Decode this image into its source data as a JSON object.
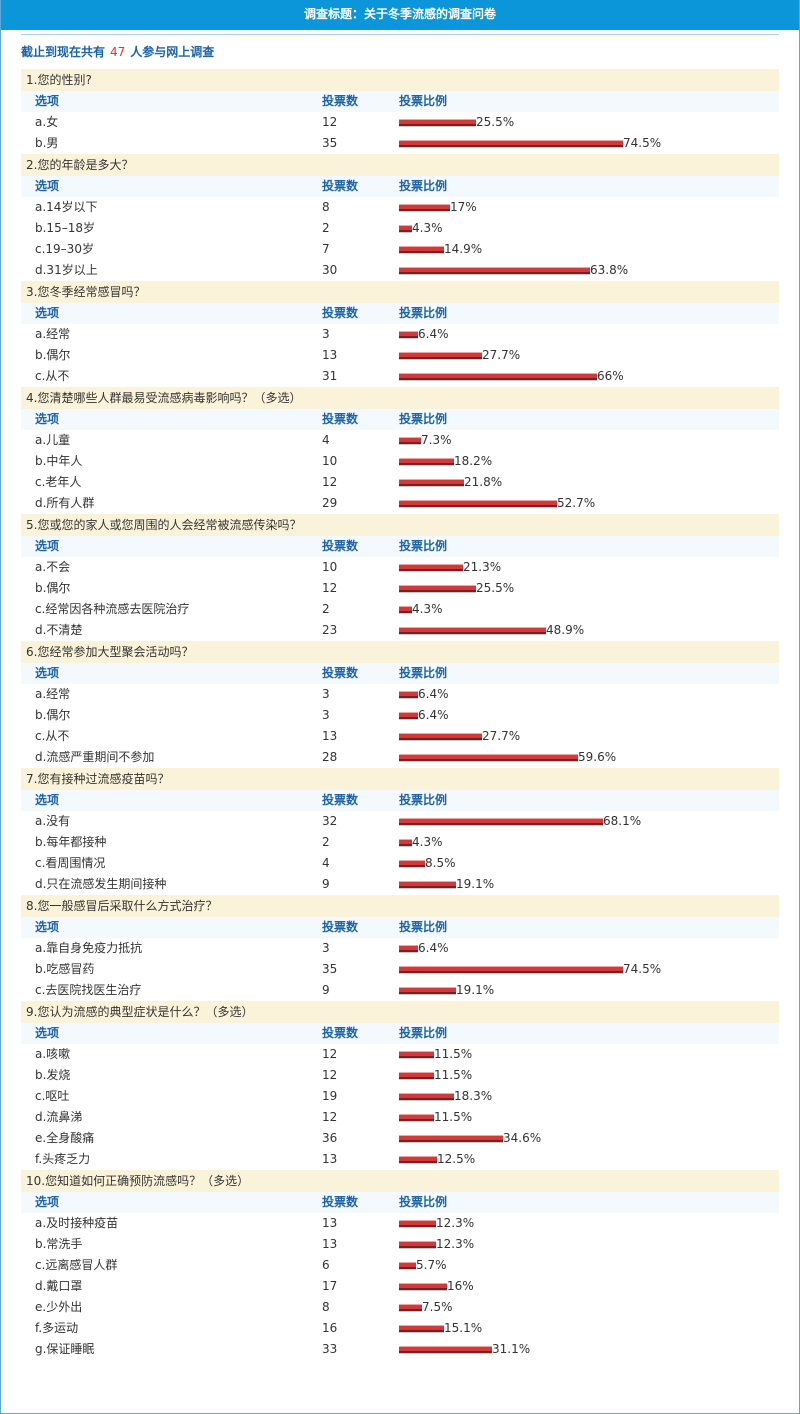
{
  "header": {
    "title": "调查标题：关于冬季流感的调查问卷"
  },
  "summary": {
    "prefix": "截止到现在共有",
    "count": "47",
    "suffix": "人参与网上调查"
  },
  "columns": {
    "option": "选项",
    "votes": "投票数",
    "ratio": "投票比例"
  },
  "colors": {
    "title_bar": "#0a96d8",
    "bar": "#d2393b",
    "question_bg": "#fbf3d9",
    "header_text": "#1d63a7"
  },
  "questions": [
    {
      "title": "1.您的性别?",
      "options": [
        {
          "label": "a.女",
          "votes": "12",
          "pct": 25.5,
          "pct_text": "25.5%"
        },
        {
          "label": "b.男",
          "votes": "35",
          "pct": 74.5,
          "pct_text": "74.5%"
        }
      ]
    },
    {
      "title": "2.您的年龄是多大？",
      "options": [
        {
          "label": "a.14岁以下",
          "votes": "8",
          "pct": 17,
          "pct_text": "17%"
        },
        {
          "label": "b.15–18岁",
          "votes": "2",
          "pct": 4.3,
          "pct_text": "4.3%"
        },
        {
          "label": "c.19–30岁",
          "votes": "7",
          "pct": 14.9,
          "pct_text": "14.9%"
        },
        {
          "label": "d.31岁以上",
          "votes": "30",
          "pct": 63.8,
          "pct_text": "63.8%"
        }
      ]
    },
    {
      "title": "3.您冬季经常感冒吗？",
      "options": [
        {
          "label": "a.经常",
          "votes": "3",
          "pct": 6.4,
          "pct_text": "6.4%"
        },
        {
          "label": "b.偶尔",
          "votes": "13",
          "pct": 27.7,
          "pct_text": "27.7%"
        },
        {
          "label": "c.从不",
          "votes": "31",
          "pct": 66,
          "pct_text": "66%"
        }
      ]
    },
    {
      "title": "4.您清楚哪些人群最易受流感病毒影响吗？（多选）",
      "options": [
        {
          "label": "a.儿童",
          "votes": "4",
          "pct": 7.3,
          "pct_text": "7.3%"
        },
        {
          "label": "b.中年人",
          "votes": "10",
          "pct": 18.2,
          "pct_text": "18.2%"
        },
        {
          "label": "c.老年人",
          "votes": "12",
          "pct": 21.8,
          "pct_text": "21.8%"
        },
        {
          "label": "d.所有人群",
          "votes": "29",
          "pct": 52.7,
          "pct_text": "52.7%"
        }
      ]
    },
    {
      "title": "5.您或您的家人或您周围的人会经常被流感传染吗？",
      "options": [
        {
          "label": "a.不会",
          "votes": "10",
          "pct": 21.3,
          "pct_text": "21.3%"
        },
        {
          "label": "b.偶尔",
          "votes": "12",
          "pct": 25.5,
          "pct_text": "25.5%"
        },
        {
          "label": "c.经常因各种流感去医院治疗",
          "votes": "2",
          "pct": 4.3,
          "pct_text": "4.3%"
        },
        {
          "label": "d.不清楚",
          "votes": "23",
          "pct": 48.9,
          "pct_text": "48.9%"
        }
      ]
    },
    {
      "title": "6.您经常参加大型聚会活动吗？",
      "options": [
        {
          "label": "a.经常",
          "votes": "3",
          "pct": 6.4,
          "pct_text": "6.4%"
        },
        {
          "label": "b.偶尔",
          "votes": "3",
          "pct": 6.4,
          "pct_text": "6.4%"
        },
        {
          "label": "c.从不",
          "votes": "13",
          "pct": 27.7,
          "pct_text": "27.7%"
        },
        {
          "label": "d.流感严重期间不参加",
          "votes": "28",
          "pct": 59.6,
          "pct_text": "59.6%"
        }
      ]
    },
    {
      "title": "7.您有接种过流感疫苗吗？",
      "options": [
        {
          "label": "a.没有",
          "votes": "32",
          "pct": 68.1,
          "pct_text": "68.1%"
        },
        {
          "label": "b.每年都接种",
          "votes": "2",
          "pct": 4.3,
          "pct_text": "4.3%"
        },
        {
          "label": "c.看周围情况",
          "votes": "4",
          "pct": 8.5,
          "pct_text": "8.5%"
        },
        {
          "label": "d.只在流感发生期间接种",
          "votes": "9",
          "pct": 19.1,
          "pct_text": "19.1%"
        }
      ]
    },
    {
      "title": "8.您一般感冒后采取什么方式治疗？",
      "options": [
        {
          "label": "a.靠自身免疫力抵抗",
          "votes": "3",
          "pct": 6.4,
          "pct_text": "6.4%"
        },
        {
          "label": "b.吃感冒药",
          "votes": "35",
          "pct": 74.5,
          "pct_text": "74.5%"
        },
        {
          "label": "c.去医院找医生治疗",
          "votes": "9",
          "pct": 19.1,
          "pct_text": "19.1%"
        }
      ]
    },
    {
      "title": "9.您认为流感的典型症状是什么？（多选）",
      "options": [
        {
          "label": "a.咳嗽",
          "votes": "12",
          "pct": 11.5,
          "pct_text": "11.5%"
        },
        {
          "label": "b.发烧",
          "votes": "12",
          "pct": 11.5,
          "pct_text": "11.5%"
        },
        {
          "label": "c.呕吐",
          "votes": "19",
          "pct": 18.3,
          "pct_text": "18.3%"
        },
        {
          "label": "d.流鼻涕",
          "votes": "12",
          "pct": 11.5,
          "pct_text": "11.5%"
        },
        {
          "label": "e.全身酸痛",
          "votes": "36",
          "pct": 34.6,
          "pct_text": "34.6%"
        },
        {
          "label": "f.头疼乏力",
          "votes": "13",
          "pct": 12.5,
          "pct_text": "12.5%"
        }
      ]
    },
    {
      "title": "10.您知道如何正确预防流感吗？（多选）",
      "options": [
        {
          "label": "a.及时接种疫苗",
          "votes": "13",
          "pct": 12.3,
          "pct_text": "12.3%"
        },
        {
          "label": "b.常洗手",
          "votes": "13",
          "pct": 12.3,
          "pct_text": "12.3%"
        },
        {
          "label": "c.远离感冒人群",
          "votes": "6",
          "pct": 5.7,
          "pct_text": "5.7%"
        },
        {
          "label": "d.戴口罩",
          "votes": "17",
          "pct": 16,
          "pct_text": "16%"
        },
        {
          "label": "e.少外出",
          "votes": "8",
          "pct": 7.5,
          "pct_text": "7.5%"
        },
        {
          "label": "f.多运动",
          "votes": "16",
          "pct": 15.1,
          "pct_text": "15.1%"
        },
        {
          "label": "g.保证睡眠",
          "votes": "33",
          "pct": 31.1,
          "pct_text": "31.1%"
        }
      ]
    }
  ]
}
